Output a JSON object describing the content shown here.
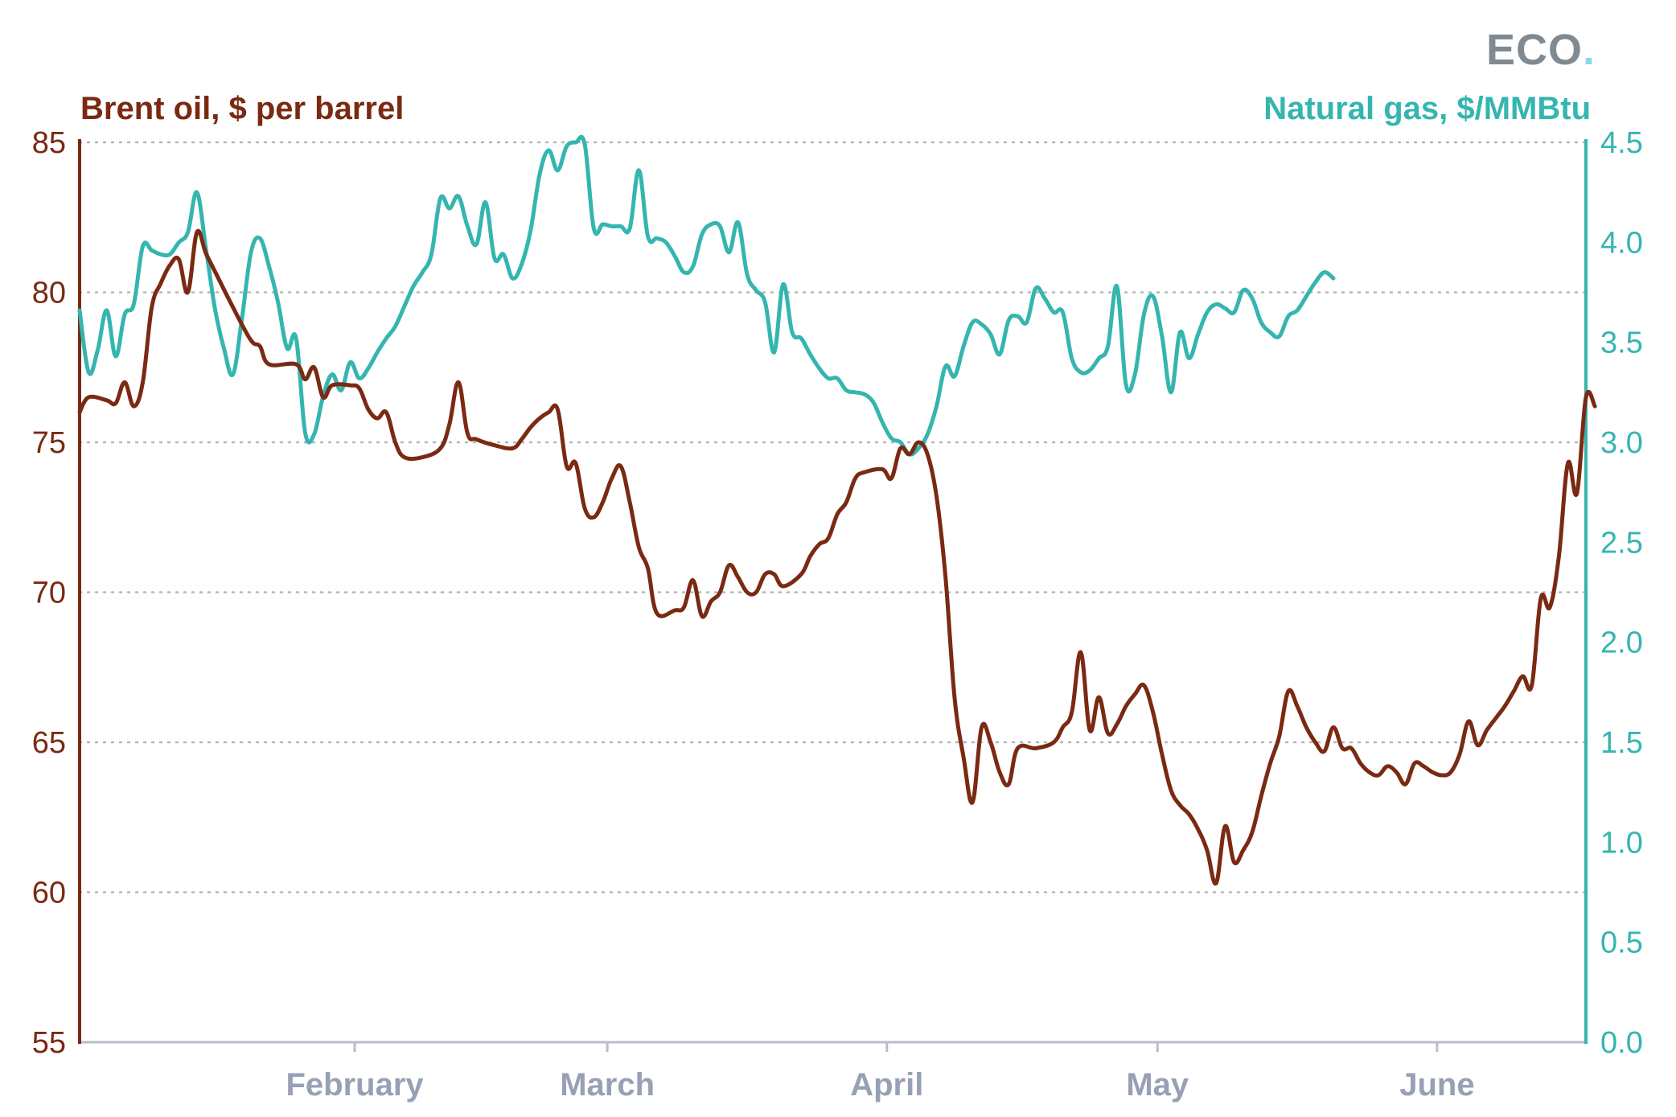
{
  "brand": {
    "logo_text": "ECO",
    "logo_dot": ".",
    "logo_color": "#7f8a92",
    "logo_dot_color": "#8fd3ef"
  },
  "chart_data": {
    "type": "line",
    "title": "",
    "colors": {
      "oil": "#7a2a12",
      "gas": "#35b5b0",
      "grid": "#b6b6b6",
      "x_axis": "#b9bccb",
      "x_ticks": "#98a0b6"
    },
    "x_axis": {
      "labels": [
        "February",
        "March",
        "April",
        "May",
        "June"
      ],
      "label_positions": [
        31.5,
        59.5,
        90.5,
        120.5,
        151.5
      ],
      "range": [
        1,
        168
      ]
    },
    "y_left": {
      "label": "Brent oil, $ per barrel",
      "ticks": [
        "85",
        "80",
        "75",
        "70",
        "65",
        "60",
        "55"
      ],
      "ylim": [
        55,
        85
      ]
    },
    "y_right": {
      "label": "Natural gas, $/MMBtu",
      "ticks": [
        "4.5",
        "4.0",
        "3.5",
        "3.0",
        "2.5",
        "2.0",
        "1.5",
        "1.0",
        "0.5",
        "0.0"
      ],
      "ylim": [
        0,
        4.5
      ]
    },
    "grid": true,
    "series": [
      {
        "name": "Brent oil, $ per barrel",
        "axis": "left",
        "points": [
          [
            1,
            76.0
          ],
          [
            2,
            76.5
          ],
          [
            4,
            76.4
          ],
          [
            5,
            76.3
          ],
          [
            6,
            77.0
          ],
          [
            7,
            76.2
          ],
          [
            8,
            77.0
          ],
          [
            9,
            79.5
          ],
          [
            10,
            80.3
          ],
          [
            11,
            80.9
          ],
          [
            12,
            81.1
          ],
          [
            13,
            80.0
          ],
          [
            14,
            82.0
          ],
          [
            15,
            81.3
          ],
          [
            16,
            80.7
          ],
          [
            18,
            79.5
          ],
          [
            20,
            78.4
          ],
          [
            21,
            78.2
          ],
          [
            22,
            77.6
          ],
          [
            25,
            77.6
          ],
          [
            26,
            77.1
          ],
          [
            27,
            77.5
          ],
          [
            28,
            76.5
          ],
          [
            29,
            76.9
          ],
          [
            31,
            76.9
          ],
          [
            32,
            76.8
          ],
          [
            33,
            76.1
          ],
          [
            34,
            75.8
          ],
          [
            35,
            76.0
          ],
          [
            36,
            75.0
          ],
          [
            37,
            74.5
          ],
          [
            39,
            74.5
          ],
          [
            41,
            74.8
          ],
          [
            42,
            75.6
          ],
          [
            43,
            77.0
          ],
          [
            44,
            75.3
          ],
          [
            45,
            75.1
          ],
          [
            47,
            74.9
          ],
          [
            49,
            74.8
          ],
          [
            50,
            75.1
          ],
          [
            51,
            75.5
          ],
          [
            52,
            75.8
          ],
          [
            53,
            76.0
          ],
          [
            54,
            76.1
          ],
          [
            55,
            74.2
          ],
          [
            56,
            74.3
          ],
          [
            57,
            72.8
          ],
          [
            58,
            72.5
          ],
          [
            59,
            73.0
          ],
          [
            60,
            73.8
          ],
          [
            61,
            74.2
          ],
          [
            62,
            73.0
          ],
          [
            63,
            71.5
          ],
          [
            64,
            70.8
          ],
          [
            65,
            69.3
          ],
          [
            67,
            69.4
          ],
          [
            68,
            69.5
          ],
          [
            69,
            70.4
          ],
          [
            70,
            69.2
          ],
          [
            71,
            69.7
          ],
          [
            72,
            70.0
          ],
          [
            73,
            70.9
          ],
          [
            74,
            70.5
          ],
          [
            75,
            70.0
          ],
          [
            76,
            70.0
          ],
          [
            77,
            70.6
          ],
          [
            78,
            70.6
          ],
          [
            79,
            70.2
          ],
          [
            81,
            70.6
          ],
          [
            82,
            71.2
          ],
          [
            83,
            71.6
          ],
          [
            84,
            71.8
          ],
          [
            85,
            72.6
          ],
          [
            86,
            73.0
          ],
          [
            87,
            73.8
          ],
          [
            88,
            74.0
          ],
          [
            90,
            74.1
          ],
          [
            91,
            73.8
          ],
          [
            92,
            74.8
          ],
          [
            93,
            74.6
          ],
          [
            94,
            75.0
          ],
          [
            95,
            74.6
          ],
          [
            96,
            73.2
          ],
          [
            97,
            70.5
          ],
          [
            98,
            66.5
          ],
          [
            99,
            64.5
          ],
          [
            100,
            63.0
          ],
          [
            101,
            65.5
          ],
          [
            102,
            65.0
          ],
          [
            103,
            64.0
          ],
          [
            104,
            63.6
          ],
          [
            105,
            64.8
          ],
          [
            107,
            64.8
          ],
          [
            109,
            65.0
          ],
          [
            110,
            65.5
          ],
          [
            111,
            66.0
          ],
          [
            112,
            68.0
          ],
          [
            113,
            65.4
          ],
          [
            114,
            66.5
          ],
          [
            115,
            65.3
          ],
          [
            116,
            65.6
          ],
          [
            117,
            66.2
          ],
          [
            118,
            66.6
          ],
          [
            119,
            66.9
          ],
          [
            120,
            66.0
          ],
          [
            121,
            64.6
          ],
          [
            122,
            63.4
          ],
          [
            123,
            62.9
          ],
          [
            124,
            62.6
          ],
          [
            125,
            62.1
          ],
          [
            126,
            61.4
          ],
          [
            127,
            60.3
          ],
          [
            128,
            62.2
          ],
          [
            129,
            61.0
          ],
          [
            130,
            61.4
          ],
          [
            131,
            62.0
          ],
          [
            132,
            63.2
          ],
          [
            133,
            64.3
          ],
          [
            134,
            65.2
          ],
          [
            135,
            66.7
          ],
          [
            136,
            66.2
          ],
          [
            137,
            65.5
          ],
          [
            138,
            65.0
          ],
          [
            139,
            64.7
          ],
          [
            140,
            65.5
          ],
          [
            141,
            64.8
          ],
          [
            142,
            64.8
          ],
          [
            143,
            64.3
          ],
          [
            144,
            64.0
          ],
          [
            145,
            63.9
          ],
          [
            146,
            64.2
          ],
          [
            147,
            64.0
          ],
          [
            148,
            63.6
          ],
          [
            149,
            64.3
          ],
          [
            150,
            64.2
          ],
          [
            151,
            64.0
          ],
          [
            152,
            63.9
          ],
          [
            153,
            64.0
          ],
          [
            154,
            64.6
          ],
          [
            155,
            65.7
          ],
          [
            156,
            64.9
          ],
          [
            157,
            65.4
          ],
          [
            158,
            65.8
          ],
          [
            159,
            66.2
          ],
          [
            160,
            66.7
          ],
          [
            161,
            67.2
          ],
          [
            162,
            66.9
          ],
          [
            163,
            69.8
          ],
          [
            164,
            69.5
          ],
          [
            165,
            71.2
          ],
          [
            166,
            74.3
          ],
          [
            167,
            73.3
          ],
          [
            168,
            76.5
          ],
          [
            169,
            76.2
          ]
        ]
      },
      {
        "name": "Natural gas, $/MMBtu",
        "axis": "right",
        "points": [
          [
            1,
            3.66
          ],
          [
            2,
            3.35
          ],
          [
            3,
            3.46
          ],
          [
            4,
            3.66
          ],
          [
            5,
            3.43
          ],
          [
            6,
            3.64
          ],
          [
            7,
            3.69
          ],
          [
            8,
            3.98
          ],
          [
            9,
            3.96
          ],
          [
            10,
            3.94
          ],
          [
            11,
            3.94
          ],
          [
            12,
            4.0
          ],
          [
            13,
            4.05
          ],
          [
            14,
            4.25
          ],
          [
            15,
            3.97
          ],
          [
            16,
            3.67
          ],
          [
            17,
            3.47
          ],
          [
            18,
            3.34
          ],
          [
            19,
            3.62
          ],
          [
            20,
            3.95
          ],
          [
            21,
            4.02
          ],
          [
            22,
            3.88
          ],
          [
            23,
            3.7
          ],
          [
            24,
            3.47
          ],
          [
            25,
            3.52
          ],
          [
            26,
            3.05
          ],
          [
            27,
            3.04
          ],
          [
            28,
            3.23
          ],
          [
            29,
            3.34
          ],
          [
            30,
            3.26
          ],
          [
            31,
            3.4
          ],
          [
            32,
            3.32
          ],
          [
            33,
            3.37
          ],
          [
            34,
            3.45
          ],
          [
            35,
            3.52
          ],
          [
            36,
            3.58
          ],
          [
            37,
            3.68
          ],
          [
            38,
            3.78
          ],
          [
            39,
            3.85
          ],
          [
            40,
            3.94
          ],
          [
            41,
            4.22
          ],
          [
            42,
            4.17
          ],
          [
            43,
            4.23
          ],
          [
            44,
            4.08
          ],
          [
            45,
            3.99
          ],
          [
            46,
            4.2
          ],
          [
            47,
            3.92
          ],
          [
            48,
            3.94
          ],
          [
            49,
            3.82
          ],
          [
            50,
            3.89
          ],
          [
            51,
            4.06
          ],
          [
            52,
            4.34
          ],
          [
            53,
            4.46
          ],
          [
            54,
            4.36
          ],
          [
            55,
            4.48
          ],
          [
            56,
            4.5
          ],
          [
            57,
            4.49
          ],
          [
            58,
            4.07
          ],
          [
            59,
            4.09
          ],
          [
            60,
            4.08
          ],
          [
            61,
            4.08
          ],
          [
            62,
            4.07
          ],
          [
            63,
            4.36
          ],
          [
            64,
            4.03
          ],
          [
            65,
            4.02
          ],
          [
            66,
            4.0
          ],
          [
            67,
            3.93
          ],
          [
            68,
            3.85
          ],
          [
            69,
            3.88
          ],
          [
            70,
            4.04
          ],
          [
            71,
            4.09
          ],
          [
            72,
            4.08
          ],
          [
            73,
            3.95
          ],
          [
            74,
            4.1
          ],
          [
            75,
            3.84
          ],
          [
            76,
            3.76
          ],
          [
            77,
            3.7
          ],
          [
            78,
            3.45
          ],
          [
            79,
            3.79
          ],
          [
            80,
            3.55
          ],
          [
            81,
            3.52
          ],
          [
            82,
            3.44
          ],
          [
            83,
            3.37
          ],
          [
            84,
            3.32
          ],
          [
            85,
            3.32
          ],
          [
            86,
            3.26
          ],
          [
            87,
            3.25
          ],
          [
            88,
            3.24
          ],
          [
            89,
            3.2
          ],
          [
            90,
            3.1
          ],
          [
            91,
            3.02
          ],
          [
            92,
            3.0
          ],
          [
            93,
            2.94
          ],
          [
            94,
            2.97
          ],
          [
            95,
            3.04
          ],
          [
            96,
            3.18
          ],
          [
            97,
            3.38
          ],
          [
            98,
            3.33
          ],
          [
            99,
            3.48
          ],
          [
            100,
            3.6
          ],
          [
            101,
            3.59
          ],
          [
            102,
            3.54
          ],
          [
            103,
            3.44
          ],
          [
            104,
            3.61
          ],
          [
            105,
            3.63
          ],
          [
            106,
            3.6
          ],
          [
            107,
            3.77
          ],
          [
            108,
            3.72
          ],
          [
            109,
            3.65
          ],
          [
            110,
            3.65
          ],
          [
            111,
            3.42
          ],
          [
            112,
            3.35
          ],
          [
            113,
            3.36
          ],
          [
            114,
            3.42
          ],
          [
            115,
            3.48
          ],
          [
            116,
            3.78
          ],
          [
            117,
            3.29
          ],
          [
            118,
            3.34
          ],
          [
            119,
            3.64
          ],
          [
            120,
            3.73
          ],
          [
            121,
            3.53
          ],
          [
            122,
            3.25
          ],
          [
            123,
            3.55
          ],
          [
            124,
            3.42
          ],
          [
            125,
            3.54
          ],
          [
            126,
            3.65
          ],
          [
            127,
            3.69
          ],
          [
            128,
            3.67
          ],
          [
            129,
            3.65
          ],
          [
            130,
            3.76
          ],
          [
            131,
            3.72
          ],
          [
            132,
            3.6
          ],
          [
            133,
            3.55
          ],
          [
            134,
            3.53
          ],
          [
            135,
            3.63
          ],
          [
            136,
            3.66
          ],
          [
            137,
            3.73
          ],
          [
            138,
            3.8
          ],
          [
            139,
            3.85
          ],
          [
            140,
            3.82
          ]
        ]
      }
    ]
  }
}
